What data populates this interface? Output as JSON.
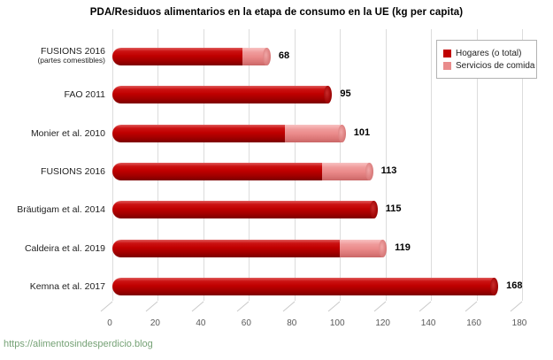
{
  "title": "PDA/Residuos alimentarios en la etapa de consumo en la UE (kg per capita)",
  "legend": {
    "items": [
      {
        "label": "Hogares (o total)",
        "color": "#C00000",
        "class": "hogares"
      },
      {
        "label": "Servicios de comida",
        "color": "#E98C8C",
        "class": "servicios"
      }
    ]
  },
  "footer": {
    "link_text": "https://alimentosindesperdicio.blog"
  },
  "chart_data": {
    "type": "bar",
    "orientation": "horizontal",
    "style": "3d-cylinder",
    "title": "PDA/Residuos alimentarios en la etapa de consumo en la UE (kg per capita)",
    "xlabel": "",
    "ylabel": "",
    "xlim": [
      0,
      180
    ],
    "xticks": [
      0,
      20,
      40,
      60,
      80,
      100,
      120,
      140,
      160,
      180
    ],
    "grid": "vertical",
    "legend_position": "top-right",
    "categories": [
      "FUSIONS 2016 (partes comestibles)",
      "FAO 2011",
      "Monier et al. 2010",
      "FUSIONS 2016",
      "Bräutigam et al. 2014",
      "Caldeira et al. 2019",
      "Kemna et al. 2017"
    ],
    "category_labels": [
      {
        "line1": "FUSIONS 2016",
        "line2": "(partes comestibles)"
      },
      {
        "line1": "FAO 2011",
        "line2": ""
      },
      {
        "line1": "Monier et al. 2010",
        "line2": ""
      },
      {
        "line1": "FUSIONS 2016",
        "line2": ""
      },
      {
        "line1": "Bräutigam et al. 2014",
        "line2": ""
      },
      {
        "line1": "Caldeira et al. 2019",
        "line2": ""
      },
      {
        "line1": "Kemna et al. 2017",
        "line2": ""
      }
    ],
    "series": [
      {
        "name": "Hogares (o total)",
        "color": "#C00000",
        "values": [
          57,
          95,
          76,
          92,
          115,
          100,
          168
        ]
      },
      {
        "name": "Servicios de comida",
        "color": "#E98C8C",
        "values": [
          11,
          0,
          25,
          21,
          0,
          19,
          0
        ]
      }
    ],
    "totals": [
      68,
      95,
      101,
      113,
      115,
      119,
      168
    ]
  }
}
